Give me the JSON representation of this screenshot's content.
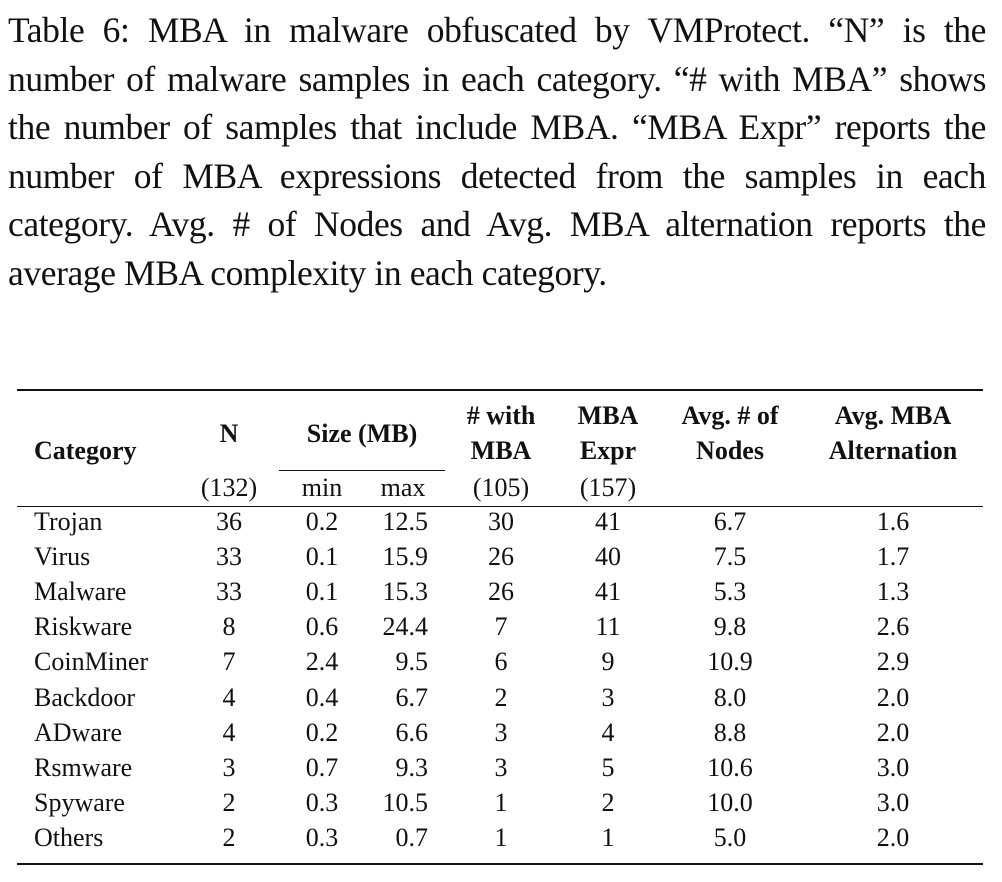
{
  "caption": "Table 6: MBA in malware obfuscated by VMProtect. “N” is the number of malware samples in each category. “# with MBA” shows the number of samples that include MBA. “MBA Expr” reports the number of MBA expressions detected from the samples in each category. Avg. # of Nodes and Avg. MBA alternation reports the average MBA complexity in each category.",
  "table": {
    "headers": {
      "category": "Category",
      "n": "N",
      "size": "Size (MB)",
      "with_mba_1": "# with",
      "with_mba_2": "MBA",
      "mba_expr_1": "MBA",
      "mba_expr_2": "Expr",
      "avg_nodes_1": "Avg. # of",
      "avg_nodes_2": "Nodes",
      "avg_alt_1": "Avg. MBA",
      "avg_alt_2": "Alternation"
    },
    "subheaders": {
      "n_total": "(132)",
      "min": "min",
      "max": "max",
      "with_mba_total": "(105)",
      "mba_expr_total": "(157)"
    },
    "rows": [
      {
        "category": "Trojan",
        "n": "36",
        "min": "0.2",
        "max": "12.5",
        "with_mba": "30",
        "mba_expr": "41",
        "avg_nodes": "6.7",
        "avg_alt": "1.6"
      },
      {
        "category": "Virus",
        "n": "33",
        "min": "0.1",
        "max": "15.9",
        "with_mba": "26",
        "mba_expr": "40",
        "avg_nodes": "7.5",
        "avg_alt": "1.7"
      },
      {
        "category": "Malware",
        "n": "33",
        "min": "0.1",
        "max": "15.3",
        "with_mba": "26",
        "mba_expr": "41",
        "avg_nodes": "5.3",
        "avg_alt": "1.3"
      },
      {
        "category": "Riskware",
        "n": "8",
        "min": "0.6",
        "max": "24.4",
        "with_mba": "7",
        "mba_expr": "11",
        "avg_nodes": "9.8",
        "avg_alt": "2.6"
      },
      {
        "category": "CoinMiner",
        "n": "7",
        "min": "2.4",
        "max": "9.5",
        "with_mba": "6",
        "mba_expr": "9",
        "avg_nodes": "10.9",
        "avg_alt": "2.9"
      },
      {
        "category": "Backdoor",
        "n": "4",
        "min": "0.4",
        "max": "6.7",
        "with_mba": "2",
        "mba_expr": "3",
        "avg_nodes": "8.0",
        "avg_alt": "2.0"
      },
      {
        "category": "ADware",
        "n": "4",
        "min": "0.2",
        "max": "6.6",
        "with_mba": "3",
        "mba_expr": "4",
        "avg_nodes": "8.8",
        "avg_alt": "2.0"
      },
      {
        "category": "Rsmware",
        "n": "3",
        "min": "0.7",
        "max": "9.3",
        "with_mba": "3",
        "mba_expr": "5",
        "avg_nodes": "10.6",
        "avg_alt": "3.0"
      },
      {
        "category": "Spyware",
        "n": "2",
        "min": "0.3",
        "max": "10.5",
        "with_mba": "1",
        "mba_expr": "2",
        "avg_nodes": "10.0",
        "avg_alt": "3.0"
      },
      {
        "category": "Others",
        "n": "2",
        "min": "0.3",
        "max": "0.7",
        "with_mba": "1",
        "mba_expr": "1",
        "avg_nodes": "5.0",
        "avg_alt": "2.0"
      }
    ]
  }
}
